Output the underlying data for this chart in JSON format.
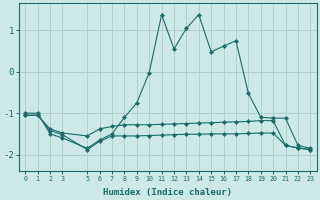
{
  "xlabel": "Humidex (Indice chaleur)",
  "background_color": "#cce8e8",
  "grid_color": "#b0d0d0",
  "line_color": "#1a6b6b",
  "x_ticks": [
    0,
    1,
    2,
    3,
    5,
    6,
    7,
    8,
    9,
    10,
    11,
    12,
    13,
    14,
    15,
    16,
    17,
    18,
    19,
    20,
    21,
    22,
    23
  ],
  "ylim": [
    -2.4,
    1.65
  ],
  "xlim": [
    -0.5,
    23.5
  ],
  "series_upper_x": [
    0,
    1,
    2,
    3,
    5,
    6,
    7,
    8,
    9,
    10,
    11,
    12,
    13,
    14,
    15,
    16,
    17,
    18,
    19,
    20,
    21,
    22,
    23
  ],
  "series_upper_y": [
    -1.0,
    -1.0,
    -1.5,
    -1.6,
    -1.85,
    -1.65,
    -1.5,
    -1.1,
    -0.75,
    -0.02,
    1.38,
    0.55,
    1.05,
    1.38,
    0.48,
    0.62,
    0.75,
    -0.52,
    -1.1,
    -1.12,
    -1.12,
    -1.78,
    -1.85
  ],
  "series_flat1_x": [
    0,
    1,
    2,
    3,
    5,
    6,
    7,
    8,
    9,
    10,
    11,
    12,
    13,
    14,
    15,
    16,
    17,
    18,
    19,
    20,
    21,
    22,
    23
  ],
  "series_flat1_y": [
    -1.05,
    -1.05,
    -1.38,
    -1.48,
    -1.55,
    -1.38,
    -1.32,
    -1.28,
    -1.28,
    -1.28,
    -1.27,
    -1.26,
    -1.25,
    -1.24,
    -1.23,
    -1.22,
    -1.21,
    -1.2,
    -1.18,
    -1.18,
    -1.78,
    -1.84,
    -1.88
  ],
  "series_flat2_x": [
    0,
    1,
    2,
    3,
    5,
    6,
    7,
    8,
    9,
    10,
    11,
    12,
    13,
    14,
    15,
    16,
    17,
    18,
    19,
    20,
    21,
    22,
    23
  ],
  "series_flat2_y": [
    -1.05,
    -1.05,
    -1.42,
    -1.52,
    -1.88,
    -1.68,
    -1.55,
    -1.55,
    -1.55,
    -1.54,
    -1.53,
    -1.52,
    -1.51,
    -1.51,
    -1.5,
    -1.5,
    -1.5,
    -1.49,
    -1.48,
    -1.48,
    -1.78,
    -1.84,
    -1.88
  ]
}
